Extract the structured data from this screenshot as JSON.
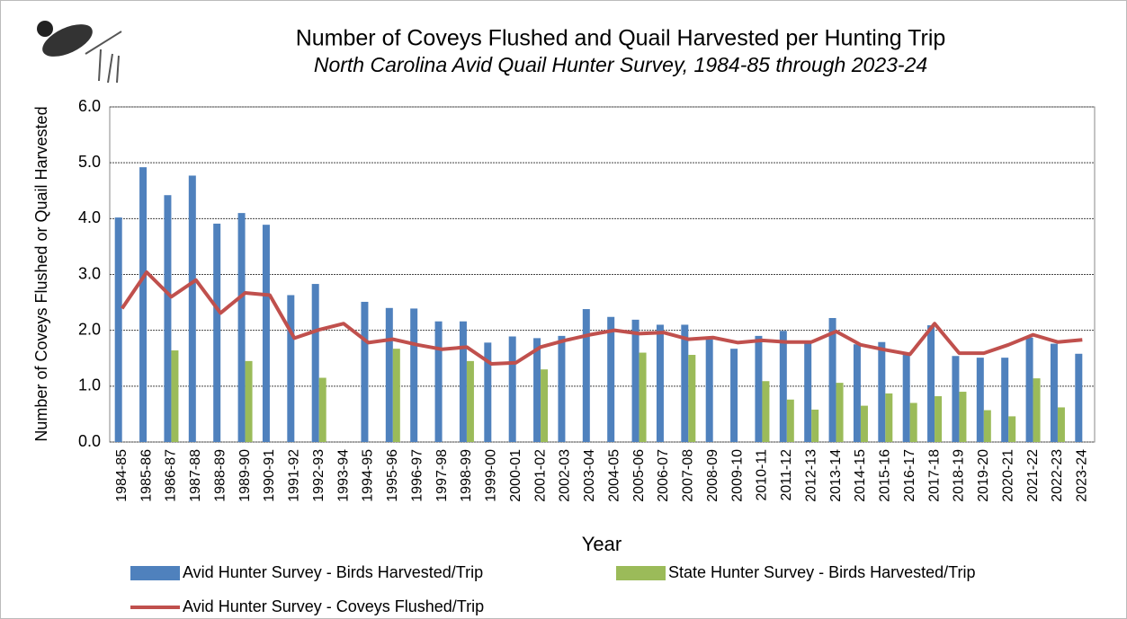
{
  "chart_data": {
    "type": "bar_line",
    "title": "Number of Coveys Flushed and Quail Harvested per Hunting Trip",
    "subtitle": "North Carolina Avid Quail Hunter Survey, 1984-85 through 2023-24",
    "x_label": "Year",
    "y_label": "Number of Coveys Flushed or Quail Harvested",
    "categories": [
      "1984-85",
      "1985-86",
      "1986-87",
      "1987-88",
      "1988-89",
      "1989-90",
      "1990-91",
      "1991-92",
      "1992-93",
      "1993-94",
      "1994-95",
      "1995-96",
      "1996-97",
      "1997-98",
      "1998-99",
      "1999-00",
      "2000-01",
      "2001-02",
      "2002-03",
      "2003-04",
      "2004-05",
      "2005-06",
      "2006-07",
      "2007-08",
      "2008-09",
      "2009-10",
      "2010-11",
      "2011-12",
      "2012-13",
      "2013-14",
      "2014-15",
      "2015-16",
      "2016-17",
      "2017-18",
      "2018-19",
      "2019-20",
      "2020-21",
      "2021-22",
      "2022-23",
      "2023-24"
    ],
    "series": [
      {
        "name": "Avid Hunter Survey - Birds Harvested/Trip",
        "kind": "bar",
        "color": "#4f81bd",
        "values": [
          4.02,
          4.92,
          4.42,
          4.77,
          3.91,
          4.1,
          3.89,
          2.63,
          2.83,
          null,
          2.51,
          2.4,
          2.39,
          2.16,
          2.16,
          1.78,
          1.89,
          1.86,
          1.9,
          2.38,
          2.24,
          2.19,
          2.1,
          2.1,
          1.84,
          1.67,
          1.9,
          1.99,
          1.77,
          2.22,
          1.75,
          1.79,
          1.59,
          2.09,
          1.54,
          1.51,
          1.51,
          1.87,
          1.76,
          1.58
        ]
      },
      {
        "name": "State Hunter Survey - Birds Harvested/Trip",
        "kind": "bar",
        "color": "#9bbb59",
        "values": [
          null,
          null,
          1.64,
          null,
          null,
          1.45,
          null,
          null,
          1.15,
          null,
          null,
          1.67,
          null,
          null,
          1.45,
          null,
          null,
          1.3,
          null,
          null,
          null,
          1.6,
          null,
          1.56,
          null,
          null,
          1.09,
          0.76,
          0.58,
          1.06,
          0.65,
          0.87,
          0.7,
          0.82,
          0.9,
          0.57,
          0.46,
          1.14,
          0.62,
          null
        ]
      },
      {
        "name": "Avid Hunter Survey - Coveys Flushed/Trip",
        "kind": "line",
        "color": "#c0504d",
        "values": [
          2.39,
          3.04,
          2.6,
          2.9,
          2.31,
          2.67,
          2.63,
          1.86,
          2.01,
          2.12,
          1.78,
          1.84,
          1.74,
          1.66,
          1.7,
          1.4,
          1.42,
          1.7,
          1.82,
          1.92,
          2.0,
          1.94,
          1.96,
          1.84,
          1.87,
          1.78,
          1.82,
          1.79,
          1.79,
          1.98,
          1.74,
          1.65,
          1.57,
          2.12,
          1.59,
          1.59,
          1.74,
          1.92,
          1.79,
          1.83
        ]
      }
    ],
    "ylim": [
      0,
      6
    ],
    "yticks": [
      {
        "value": 0,
        "label": "0.0"
      },
      {
        "value": 1,
        "label": "1.0"
      },
      {
        "value": 2,
        "label": "2.0"
      },
      {
        "value": 3,
        "label": "3.0"
      },
      {
        "value": 4,
        "label": "4.0"
      },
      {
        "value": 5,
        "label": "5.0"
      },
      {
        "value": 6,
        "label": "6.0"
      }
    ],
    "grid": true
  }
}
